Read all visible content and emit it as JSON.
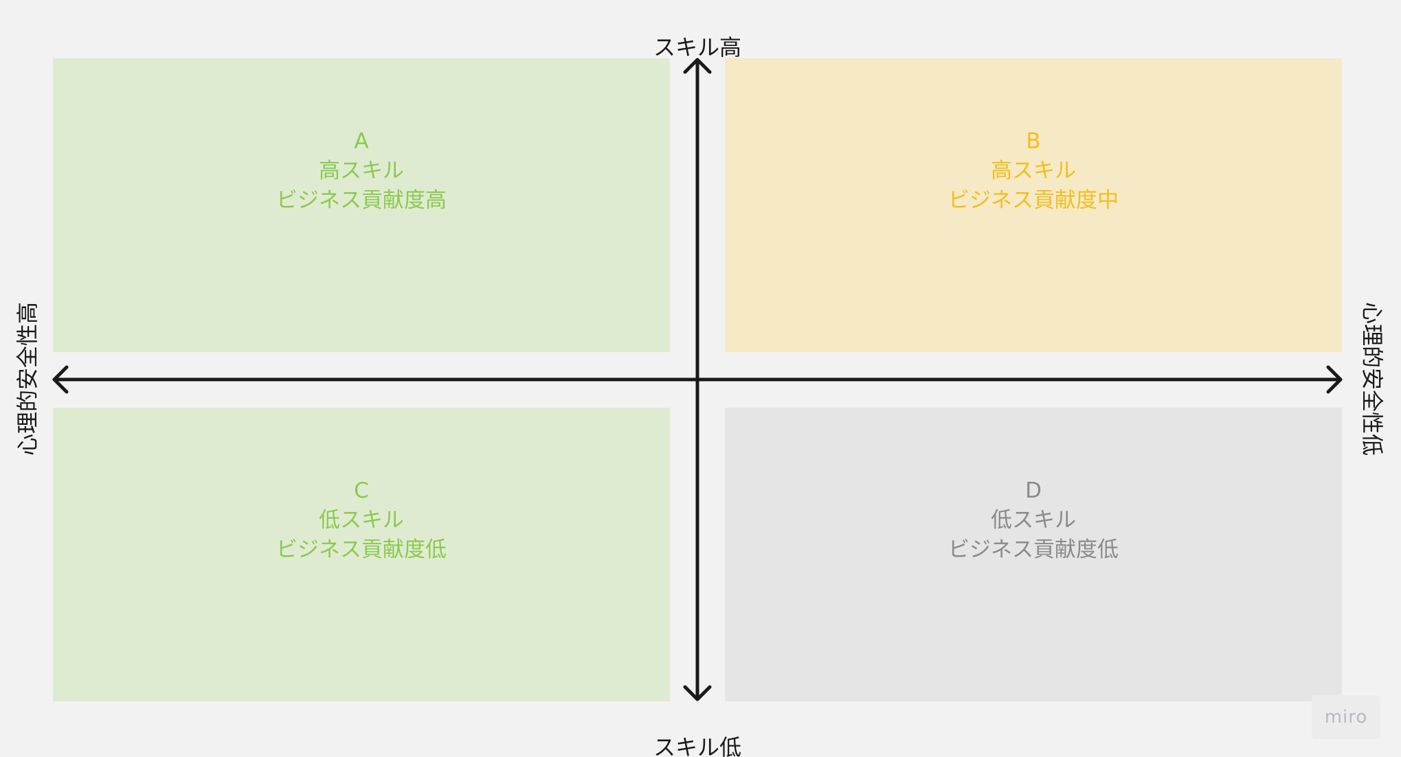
{
  "axes": {
    "top_label": "スキル高",
    "bottom_label": "スキル低",
    "left_label": "心理的安全性高",
    "right_label": "心理的安全性低"
  },
  "quadrants": [
    {
      "id": "A",
      "line1": "A",
      "line2": "高スキル",
      "line3": "ビジネス貢献度高",
      "background": "#dfebd1",
      "text_color": "#8cc94e"
    },
    {
      "id": "B",
      "line1": "B",
      "line2": "高スキル",
      "line3": "ビジネス貢献度中",
      "background": "#f5e9c6",
      "text_color": "#f2bf1d"
    },
    {
      "id": "C",
      "line1": "C",
      "line2": "低スキル",
      "line3": "ビジネス貢献度低",
      "background": "#dfebd1",
      "text_color": "#8cc94e"
    },
    {
      "id": "D",
      "line1": "D",
      "line2": "低スキル",
      "line3": "ビジネス貢献度低",
      "background": "#e5e5e5",
      "text_color": "#8a8a8a"
    }
  ],
  "colors": {
    "canvas_background": "#f2f2f2",
    "axis_color": "#1a1a1a"
  },
  "watermark": {
    "text": "miro",
    "icon": "miro-logo"
  }
}
